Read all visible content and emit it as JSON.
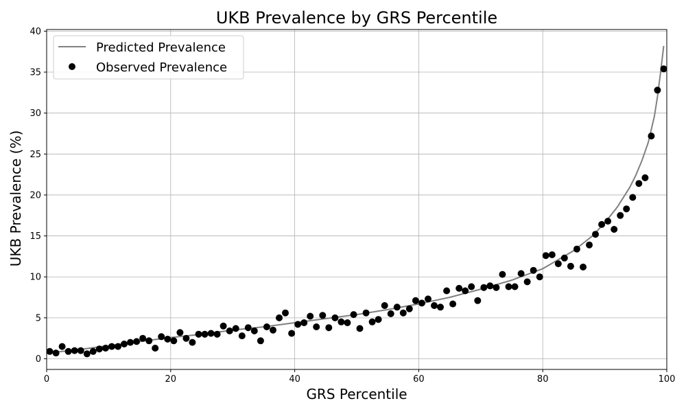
{
  "chart_data": {
    "type": "scatter",
    "title": "UKB Prevalence by GRS Percentile",
    "xlabel": "GRS Percentile",
    "ylabel": "UKB Prevalence (%)",
    "xlim": [
      0,
      100
    ],
    "ylim": [
      -1.3,
      40.2
    ],
    "x_ticks": [
      0,
      20,
      40,
      60,
      80,
      100
    ],
    "y_ticks": [
      0,
      5,
      10,
      15,
      20,
      25,
      30,
      35,
      40
    ],
    "grid": true,
    "legend_position": "top-left",
    "series": [
      {
        "name": "Predicted Prevalence",
        "kind": "line",
        "color": "#808080",
        "x": [
          0,
          5,
          10,
          15,
          20,
          25,
          30,
          35,
          40,
          45,
          50,
          55,
          60,
          65,
          70,
          75,
          80,
          85,
          88,
          90,
          92,
          94,
          95,
          96,
          97,
          98,
          98.5,
          99,
          99.5
        ],
        "y": [
          0.7,
          1.1,
          1.6,
          2.1,
          2.6,
          3.0,
          3.5,
          3.9,
          4.4,
          4.9,
          5.4,
          6.0,
          6.7,
          7.5,
          8.5,
          9.6,
          11.0,
          13.2,
          15.0,
          16.6,
          18.5,
          20.9,
          22.4,
          24.2,
          26.4,
          29.6,
          32.0,
          35.0,
          38.2
        ]
      },
      {
        "name": "Observed Prevalence",
        "kind": "scatter",
        "color": "#000000",
        "x": [
          0.5,
          1.5,
          2.5,
          3.5,
          4.5,
          5.5,
          6.5,
          7.5,
          8.5,
          9.5,
          10.5,
          11.5,
          12.5,
          13.5,
          14.5,
          15.5,
          16.5,
          17.5,
          18.5,
          19.5,
          20.5,
          21.5,
          22.5,
          23.5,
          24.5,
          25.5,
          26.5,
          27.5,
          28.5,
          29.5,
          30.5,
          31.5,
          32.5,
          33.5,
          34.5,
          35.5,
          36.5,
          37.5,
          38.5,
          39.5,
          40.5,
          41.5,
          42.5,
          43.5,
          44.5,
          45.5,
          46.5,
          47.5,
          48.5,
          49.5,
          50.5,
          51.5,
          52.5,
          53.5,
          54.5,
          55.5,
          56.5,
          57.5,
          58.5,
          59.5,
          60.5,
          61.5,
          62.5,
          63.5,
          64.5,
          65.5,
          66.5,
          67.5,
          68.5,
          69.5,
          70.5,
          71.5,
          72.5,
          73.5,
          74.5,
          75.5,
          76.5,
          77.5,
          78.5,
          79.5,
          80.5,
          81.5,
          82.5,
          83.5,
          84.5,
          85.5,
          86.5,
          87.5,
          88.5,
          89.5,
          90.5,
          91.5,
          92.5,
          93.5,
          94.5,
          95.5,
          96.5,
          97.5,
          98.5,
          99.5
        ],
        "y": [
          0.9,
          0.7,
          1.5,
          0.9,
          1.0,
          1.0,
          0.6,
          0.9,
          1.2,
          1.3,
          1.5,
          1.5,
          1.8,
          2.0,
          2.1,
          2.5,
          2.2,
          1.3,
          2.7,
          2.4,
          2.2,
          3.2,
          2.5,
          2.0,
          3.0,
          3.0,
          3.1,
          3.0,
          4.0,
          3.4,
          3.7,
          2.8,
          3.8,
          3.4,
          2.2,
          3.9,
          3.5,
          5.0,
          5.6,
          3.1,
          4.2,
          4.4,
          5.2,
          3.9,
          5.3,
          3.8,
          5.0,
          4.5,
          4.4,
          5.4,
          3.7,
          5.6,
          4.5,
          4.8,
          6.5,
          5.5,
          6.3,
          5.6,
          6.1,
          7.1,
          6.8,
          7.3,
          6.5,
          6.3,
          8.3,
          6.7,
          8.6,
          8.3,
          8.8,
          7.1,
          8.7,
          8.9,
          8.7,
          10.3,
          8.8,
          8.8,
          10.4,
          9.4,
          10.8,
          10.0,
          12.6,
          12.7,
          11.6,
          12.3,
          11.3,
          13.4,
          11.2,
          13.9,
          15.2,
          16.4,
          16.8,
          15.8,
          17.5,
          18.3,
          19.7,
          21.4,
          22.1,
          27.2,
          32.8,
          35.4
        ]
      }
    ]
  }
}
